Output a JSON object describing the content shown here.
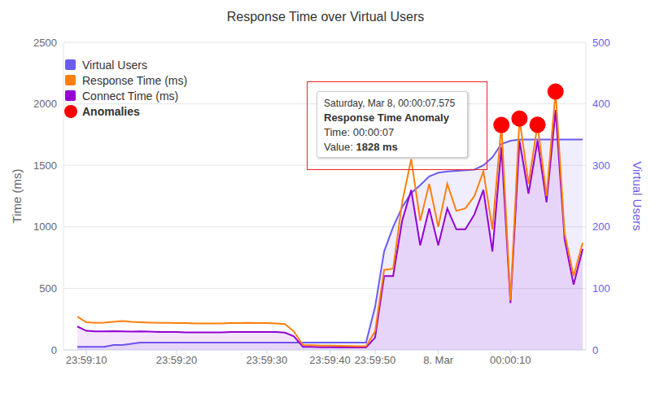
{
  "chart_data": {
    "type": "line",
    "title": "Response Time over Virtual Users",
    "ylabel": "Time (ms)",
    "y2label": "Virtual Users",
    "categories": [
      null,
      "23:59:10",
      null,
      null,
      null,
      null,
      null,
      null,
      null,
      null,
      null,
      "23:59:20",
      null,
      null,
      null,
      null,
      null,
      null,
      null,
      null,
      null,
      "23:59:30",
      null,
      null,
      null,
      null,
      null,
      null,
      "23:59:40",
      null,
      null,
      null,
      null,
      "23:59:50",
      null,
      null,
      null,
      null,
      null,
      null,
      "8. Mar",
      null,
      null,
      null,
      null,
      null,
      null,
      null,
      "00:00:10",
      null,
      null,
      null,
      null,
      null,
      null,
      null,
      null
    ],
    "series": [
      {
        "name": "Virtual Users",
        "color": "#6b5cf0",
        "type": "area",
        "axis": "y2",
        "values": [
          5,
          5,
          5,
          5,
          8,
          8,
          10,
          12,
          12,
          12,
          12,
          12,
          12,
          12,
          12,
          12,
          12,
          12,
          12,
          12,
          12,
          12,
          12,
          12,
          12,
          12,
          12,
          12,
          12,
          12,
          12,
          12,
          12,
          70,
          160,
          200,
          232,
          255,
          268,
          282,
          288,
          290,
          291,
          292,
          293,
          300,
          313,
          335,
          340,
          342,
          342,
          342,
          342,
          342,
          342,
          342,
          342
        ]
      },
      {
        "name": "Response Time (ms)",
        "color": "#ff7f0e",
        "type": "line",
        "values": [
          270,
          225,
          220,
          222,
          228,
          235,
          228,
          225,
          222,
          220,
          220,
          218,
          218,
          215,
          215,
          215,
          215,
          218,
          218,
          220,
          218,
          218,
          215,
          210,
          150,
          40,
          38,
          35,
          35,
          33,
          32,
          30,
          30,
          150,
          650,
          660,
          1200,
          1550,
          1050,
          1350,
          1000,
          1350,
          1130,
          1150,
          1250,
          1450,
          980,
          1828,
          400,
          1880,
          1350,
          1830,
          1250,
          2100,
          950,
          600,
          870
        ]
      },
      {
        "name": "Connect Time (ms)",
        "color": "#9400d3",
        "type": "area",
        "values": [
          190,
          155,
          150,
          150,
          152,
          150,
          148,
          150,
          148,
          145,
          145,
          145,
          142,
          142,
          142,
          142,
          142,
          145,
          145,
          145,
          145,
          145,
          145,
          140,
          110,
          25,
          25,
          22,
          22,
          20,
          20,
          20,
          20,
          100,
          600,
          600,
          1050,
          1300,
          850,
          1150,
          850,
          1150,
          980,
          980,
          1100,
          1300,
          800,
          1650,
          380,
          1700,
          1270,
          1700,
          1200,
          1950,
          900,
          530,
          820
        ]
      },
      {
        "name": "Anomalies",
        "color": "#ff0000",
        "type": "scatter",
        "marker": "circle",
        "values": [
          null,
          null,
          null,
          null,
          null,
          null,
          null,
          null,
          null,
          null,
          null,
          null,
          null,
          null,
          null,
          null,
          null,
          null,
          null,
          null,
          null,
          null,
          null,
          null,
          null,
          null,
          null,
          null,
          null,
          null,
          null,
          null,
          null,
          null,
          null,
          null,
          null,
          null,
          null,
          null,
          null,
          null,
          null,
          null,
          null,
          null,
          null,
          1828,
          null,
          1880,
          null,
          1830,
          null,
          2100,
          null,
          null,
          null
        ]
      }
    ],
    "ylim": [
      0,
      2500
    ],
    "yticks": [
      0,
      500,
      1000,
      1500,
      2000,
      2500
    ],
    "y2lim": [
      0,
      500
    ],
    "y2ticks": [
      0,
      100,
      200,
      300,
      400,
      500
    ],
    "grid": true,
    "legend": "upper left",
    "annotation": {
      "date": "Saturday, Mar 8, 00:00:07.575",
      "title": "Response Time Anomaly",
      "lines": [
        {
          "label": "Time:",
          "value": "00:00:07"
        },
        {
          "label": "Value:",
          "value": "1828 ms"
        }
      ]
    }
  }
}
